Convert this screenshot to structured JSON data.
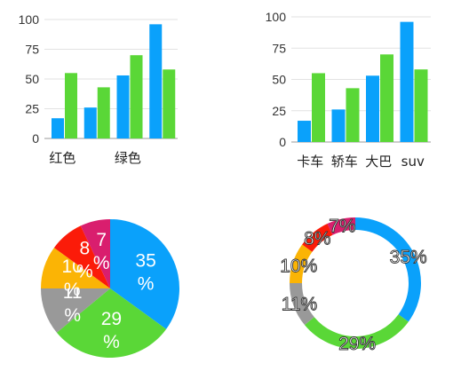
{
  "colors": {
    "blue": "#0aa1fb",
    "green": "#5ad737",
    "red": "#fb1b09",
    "yellow": "#fbb405",
    "gray": "#999999",
    "magenta": "#d91e6e",
    "gridline": "#e2e2e2",
    "axis": "#999999"
  },
  "chart_data": [
    {
      "type": "bar",
      "categories": [
        "红色",
        "",
        "绿色",
        ""
      ],
      "series": [
        {
          "values": [
            17,
            26,
            53,
            96
          ],
          "color": "#0aa1fb"
        },
        {
          "values": [
            55,
            43,
            70,
            58
          ],
          "color": "#5ad737"
        }
      ],
      "yticks": [
        0,
        25,
        50,
        75,
        100
      ],
      "ylim": [
        0,
        100
      ],
      "grid": true
    },
    {
      "type": "bar",
      "categories": [
        "卡车",
        "轿车",
        "大巴",
        "suv"
      ],
      "series": [
        {
          "values": [
            17,
            26,
            53,
            96
          ],
          "color": "#0aa1fb"
        },
        {
          "values": [
            55,
            43,
            70,
            58
          ],
          "color": "#5ad737"
        }
      ],
      "yticks": [
        0,
        25,
        50,
        75,
        100
      ],
      "ylim": [
        0,
        100
      ],
      "grid": true
    },
    {
      "type": "pie",
      "slices": [
        {
          "value": 35,
          "label": "35%",
          "color": "#0aa1fb"
        },
        {
          "value": 29,
          "label": "29%",
          "color": "#5ad737"
        },
        {
          "value": 11,
          "label": "11%",
          "color": "#999999"
        },
        {
          "value": 10,
          "label": "10%",
          "color": "#fbb405"
        },
        {
          "value": 8,
          "label": "8%",
          "color": "#fb1b09"
        },
        {
          "value": 7,
          "label": "7%",
          "color": "#d91e6e"
        }
      ]
    },
    {
      "type": "pie",
      "donut": true,
      "slices": [
        {
          "value": 35,
          "label": "35%",
          "color": "#0aa1fb"
        },
        {
          "value": 29,
          "label": "29%",
          "color": "#5ad737"
        },
        {
          "value": 11,
          "label": "11%",
          "color": "#999999"
        },
        {
          "value": 10,
          "label": "10%",
          "color": "#fbb405"
        },
        {
          "value": 8,
          "label": "8%",
          "color": "#fb1b09"
        },
        {
          "value": 7,
          "label": "7%",
          "color": "#d91e6e"
        }
      ]
    }
  ]
}
